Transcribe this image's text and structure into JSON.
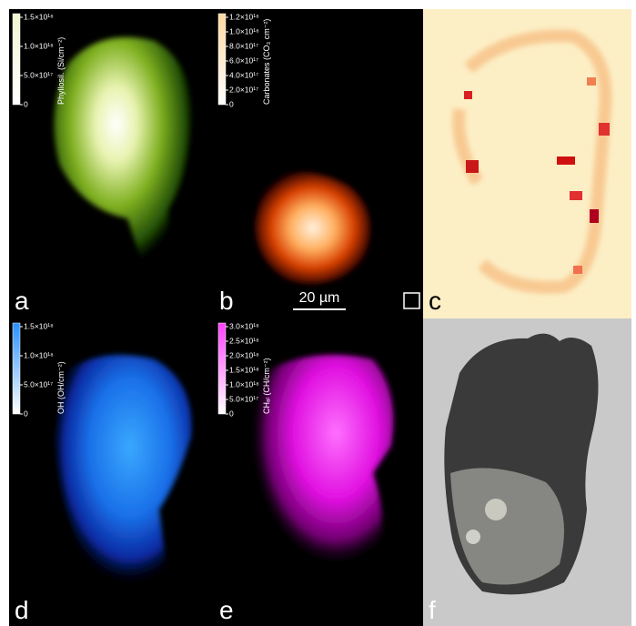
{
  "panels": [
    {
      "label": "a",
      "colorbar": {
        "title": "Phyllosil. (Si/cm⁻²)",
        "ticks": [
          "1.5×10¹⁸",
          "1.0×10¹⁸",
          "5.0×10¹⁷",
          "0"
        ]
      }
    },
    {
      "label": "b",
      "colorbar": {
        "title": "Carbonates (CO₃ cm⁻²)",
        "ticks": [
          "1.2×10¹⁸",
          "1.0×10¹⁸",
          "8.0×10¹⁷",
          "6.0×10¹⁷",
          "4.0×10¹⁷",
          "2.0×10¹⁷",
          "0"
        ]
      }
    },
    {
      "label": "c"
    },
    {
      "label": "d",
      "colorbar": {
        "title": "OH (OH/cm⁻²)",
        "ticks": [
          "1.5×10¹⁸",
          "1.0×10¹⁸",
          "5.0×10¹⁷",
          "0"
        ]
      }
    },
    {
      "label": "e",
      "colorbar": {
        "title": "CHₐₗ (CH/cm⁻²)",
        "ticks": [
          "3.0×10¹⁸",
          "2.5×10¹⁸",
          "2.0×10¹⁸",
          "1.5×10¹⁸",
          "1.0×10¹⁸",
          "5.0×10¹⁷",
          "0"
        ]
      }
    },
    {
      "label": "f"
    }
  ],
  "scale_bar": "20 µm"
}
